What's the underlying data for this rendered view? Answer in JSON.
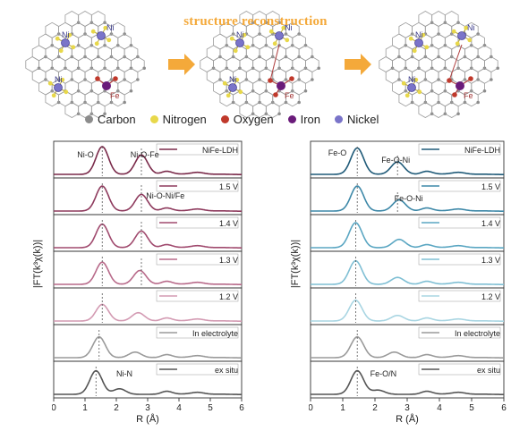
{
  "banner": {
    "title": "structure reconstruction",
    "legend": [
      {
        "label": "Carbon",
        "color": "#8c8c8c"
      },
      {
        "label": "Nitrogen",
        "color": "#e8d84a"
      },
      {
        "label": "Oxygen",
        "color": "#c0392b"
      },
      {
        "label": "Iron",
        "color": "#6a1b7a"
      },
      {
        "label": "Nickel",
        "color": "#7a74c9"
      }
    ],
    "atom_labels": {
      "ni": "Ni",
      "fe": "Fe"
    },
    "arrow_color": "#f4a93a"
  },
  "chart_data": [
    {
      "type": "line",
      "stacked": true,
      "xlabel": "R (Å)",
      "ylabel": "|FT(k³χ(k))|",
      "xlim": [
        0,
        6
      ],
      "xticks": [
        "0",
        "1",
        "2",
        "3",
        "4",
        "5",
        "6"
      ],
      "series": [
        {
          "name": "NiFe-LDH",
          "color": "#7a2a4a",
          "peaks": [
            [
              1.55,
              1.0
            ],
            [
              2.8,
              0.7
            ]
          ]
        },
        {
          "name": "1.5 V",
          "color": "#8e3a5d",
          "peaks": [
            [
              1.55,
              0.9
            ],
            [
              2.8,
              0.6
            ]
          ]
        },
        {
          "name": "1.4 V",
          "color": "#a04a6e",
          "peaks": [
            [
              1.55,
              0.85
            ],
            [
              2.8,
              0.6
            ]
          ]
        },
        {
          "name": "1.3 V",
          "color": "#b86a8a",
          "peaks": [
            [
              1.55,
              0.8
            ],
            [
              2.75,
              0.5
            ]
          ]
        },
        {
          "name": "1.2 V",
          "color": "#d39ab2",
          "peaks": [
            [
              1.55,
              0.6
            ],
            [
              2.7,
              0.3
            ]
          ]
        },
        {
          "name": "In electrolyte",
          "color": "#9a9a9a",
          "peaks": [
            [
              1.45,
              0.75
            ],
            [
              2.6,
              0.2
            ]
          ]
        },
        {
          "name": "ex situ",
          "color": "#555555",
          "peaks": [
            [
              1.35,
              0.85
            ],
            [
              2.1,
              0.2
            ]
          ]
        }
      ],
      "annotations": [
        "Ni-O",
        "Ni-O-Fe",
        "Ni-O-Ni/Fe",
        "Ni-N"
      ]
    },
    {
      "type": "line",
      "stacked": true,
      "xlabel": "R (Å)",
      "ylabel": "|FT(k³χ(k))|",
      "xlim": [
        0,
        6
      ],
      "xticks": [
        "0",
        "1",
        "2",
        "3",
        "4",
        "5",
        "6"
      ],
      "series": [
        {
          "name": "NiFe-LDH",
          "color": "#1f5a78",
          "peaks": [
            [
              1.45,
              0.95
            ],
            [
              2.7,
              0.45
            ]
          ]
        },
        {
          "name": "1.5 V",
          "color": "#3d88a8",
          "peaks": [
            [
              1.45,
              0.9
            ],
            [
              2.75,
              0.4
            ]
          ]
        },
        {
          "name": "1.4 V",
          "color": "#5aa6c2",
          "peaks": [
            [
              1.4,
              0.9
            ],
            [
              2.75,
              0.3
            ]
          ]
        },
        {
          "name": "1.3 V",
          "color": "#7fbfd4",
          "peaks": [
            [
              1.4,
              0.85
            ],
            [
              2.7,
              0.25
            ]
          ]
        },
        {
          "name": "1.2 V",
          "color": "#a8d5e2",
          "peaks": [
            [
              1.4,
              0.75
            ],
            [
              2.7,
              0.2
            ]
          ]
        },
        {
          "name": "In electrolyte",
          "color": "#9a9a9a",
          "peaks": [
            [
              1.45,
              0.75
            ],
            [
              2.6,
              0.2
            ]
          ]
        },
        {
          "name": "ex situ",
          "color": "#555555",
          "peaks": [
            [
              1.45,
              0.85
            ],
            [
              2.1,
              0.15
            ]
          ]
        }
      ],
      "annotations": [
        "Fe-O",
        "Fe-O-Ni",
        "Fe-O-Ni",
        "Fe-O/N"
      ]
    }
  ]
}
